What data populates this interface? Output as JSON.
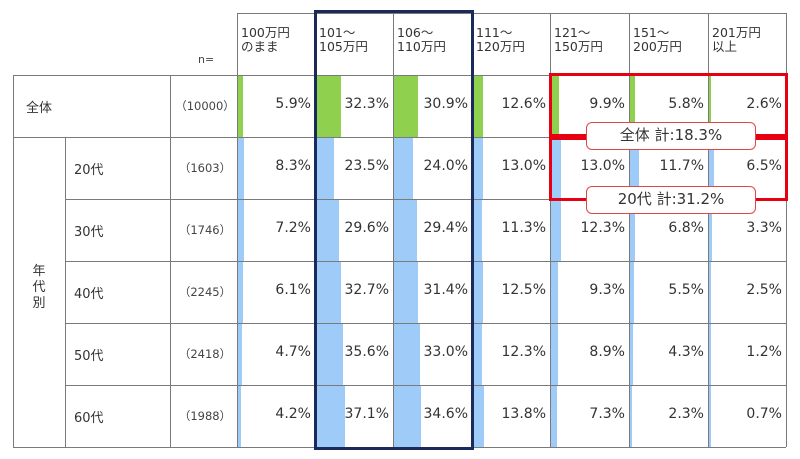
{
  "headers": [
    {
      "key": "c100",
      "label": "100万円\nのまま"
    },
    {
      "key": "c101",
      "label": "101～\n105万円"
    },
    {
      "key": "c106",
      "label": "106～\n110万円"
    },
    {
      "key": "c111",
      "label": "111～\n120万円"
    },
    {
      "key": "c121",
      "label": "121～\n150万円"
    },
    {
      "key": "c151",
      "label": "151～\n200万円"
    },
    {
      "key": "c201",
      "label": "201万円\n以上"
    }
  ],
  "n_label": "n=",
  "group_label": "年\n代\n別",
  "chart_data": {
    "type": "table",
    "categories": [
      "100万円のまま",
      "101～105万円",
      "106～110万円",
      "111～120万円",
      "121～150万円",
      "151～200万円",
      "201万円以上"
    ],
    "rows": [
      {
        "label": "全体",
        "n": "（10000）",
        "values": [
          5.9,
          32.3,
          30.9,
          12.6,
          9.9,
          5.8,
          2.6
        ],
        "display": [
          "5.9%",
          "32.3%",
          "30.9%",
          "12.6%",
          "9.9%",
          "5.8%",
          "2.6%"
        ]
      },
      {
        "label": "20代",
        "n": "（1603）",
        "values": [
          8.3,
          23.5,
          24.0,
          13.0,
          13.0,
          11.7,
          6.5
        ],
        "display": [
          "8.3%",
          "23.5%",
          "24.0%",
          "13.0%",
          "13.0%",
          "11.7%",
          "6.5%"
        ]
      },
      {
        "label": "30代",
        "n": "（1746）",
        "values": [
          7.2,
          29.6,
          29.4,
          11.3,
          12.3,
          6.8,
          3.3
        ],
        "display": [
          "7.2%",
          "29.6%",
          "29.4%",
          "11.3%",
          "12.3%",
          "6.8%",
          "3.3%"
        ]
      },
      {
        "label": "40代",
        "n": "（2245）",
        "values": [
          6.1,
          32.7,
          31.4,
          12.5,
          9.3,
          5.5,
          2.5
        ],
        "display": [
          "6.1%",
          "32.7%",
          "31.4%",
          "12.5%",
          "9.3%",
          "5.5%",
          "2.5%"
        ]
      },
      {
        "label": "50代",
        "n": "（2418）",
        "values": [
          4.7,
          35.6,
          33.0,
          12.3,
          8.9,
          4.3,
          1.2
        ],
        "display": [
          "4.7%",
          "35.6%",
          "33.0%",
          "12.3%",
          "8.9%",
          "4.3%",
          "1.2%"
        ]
      },
      {
        "label": "60代",
        "n": "（1988）",
        "values": [
          4.2,
          37.1,
          34.6,
          13.8,
          7.3,
          2.3,
          0.7
        ],
        "display": [
          "4.2%",
          "37.1%",
          "34.6%",
          "13.8%",
          "7.3%",
          "2.3%",
          "0.7%"
        ]
      }
    ]
  },
  "annotations": [
    {
      "key": "total",
      "text": "全体 計:18.3%"
    },
    {
      "key": "twenties",
      "text": "20代 計:31.2%"
    }
  ],
  "colors": {
    "total_bar": "#8fd14f",
    "age_bar": "#9ecbf7",
    "highlight_navy": "#1a2a5a",
    "highlight_red": "#e60012"
  }
}
